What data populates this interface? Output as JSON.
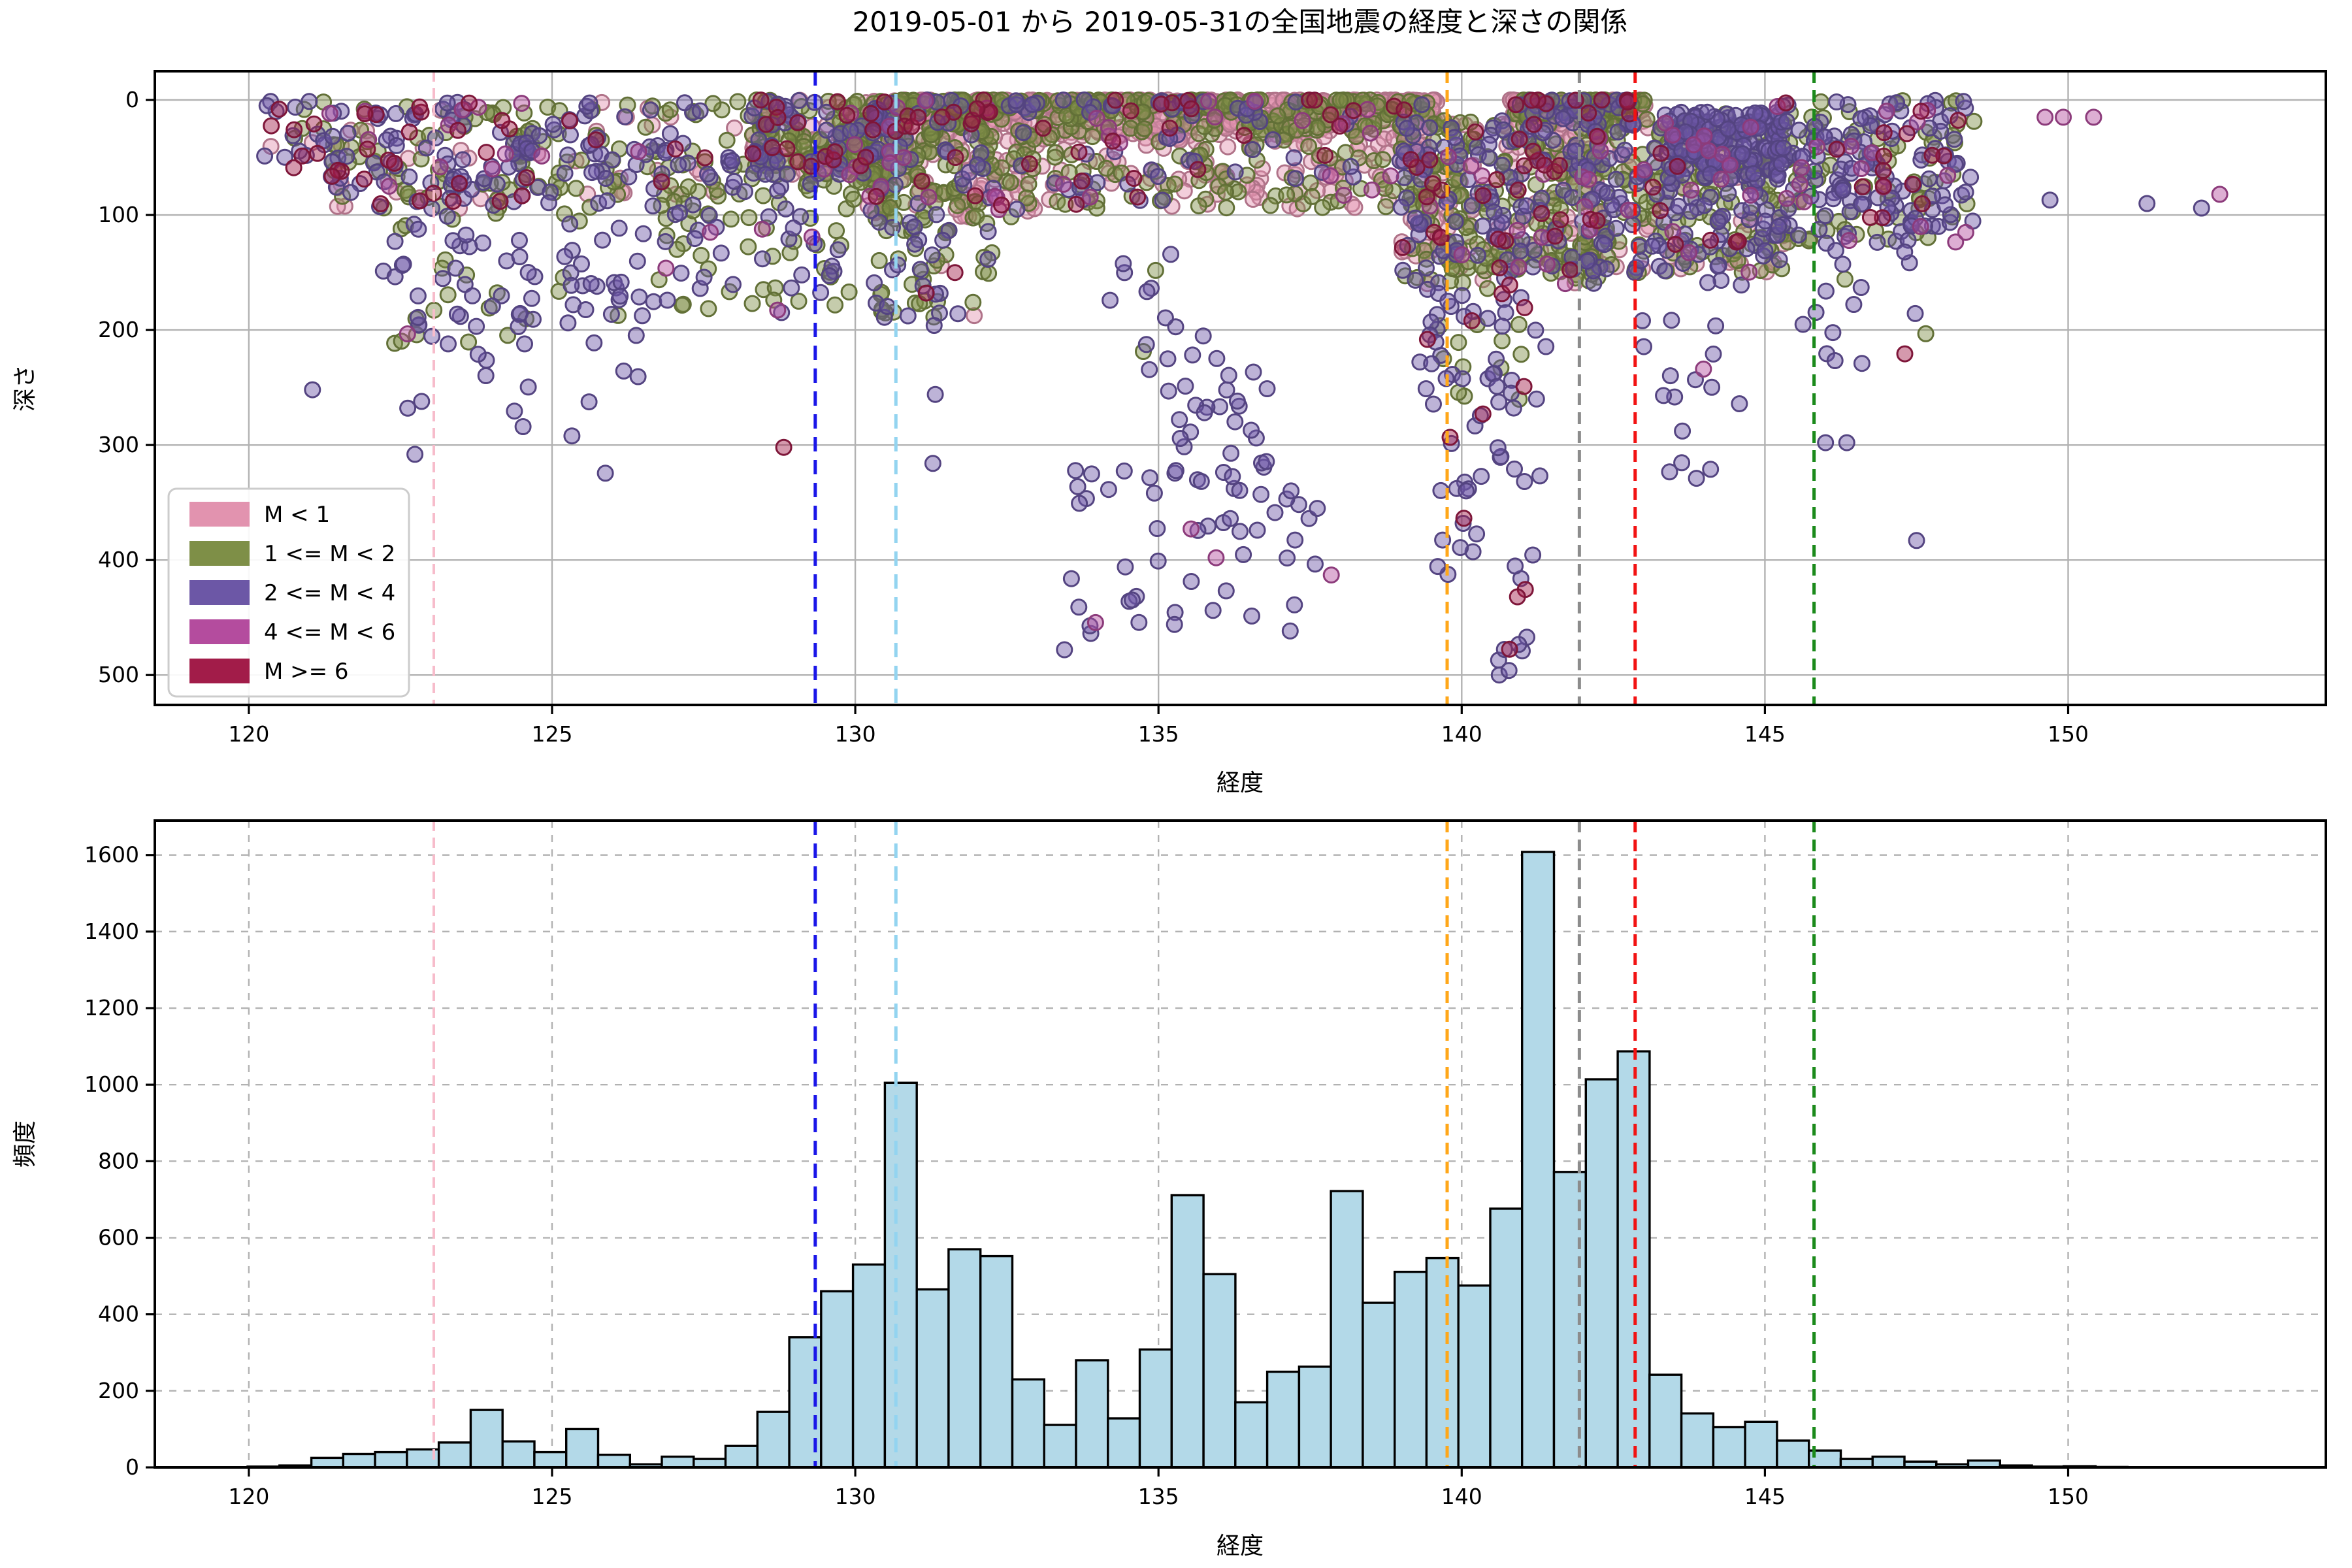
{
  "title": "2019-05-01 から 2019-05-31の全国地震の経度と深さの関係",
  "vlines": [
    {
      "name": "pink-vline",
      "x": 123.05,
      "color": "#F7BCCB",
      "width": 4,
      "dash": "16 10"
    },
    {
      "name": "blue-vline",
      "x": 129.34,
      "color": "#1A16E8",
      "width": 5,
      "dash": "22 13"
    },
    {
      "name": "skyblue-vline",
      "x": 130.67,
      "color": "#93D4F0",
      "width": 5,
      "dash": "22 13"
    },
    {
      "name": "orange-vline",
      "x": 139.76,
      "color": "#FFA719",
      "width": 5,
      "dash": "18 11"
    },
    {
      "name": "gray-vline",
      "x": 141.94,
      "color": "#8C8C8C",
      "width": 5,
      "dash": "18 11"
    },
    {
      "name": "red-vline",
      "x": 142.86,
      "color": "#F21212",
      "width": 5,
      "dash": "18 11"
    },
    {
      "name": "green-vline",
      "x": 145.81,
      "color": "#1B8A1B",
      "width": 5,
      "dash": "18 11"
    }
  ],
  "chart_data": [
    {
      "type": "scatter",
      "title": "2019-05-01 から 2019-05-31の全国地震の経度と深さの関係",
      "xlabel": "経度",
      "ylabel": "深さ",
      "xlim": [
        118.45,
        154.25
      ],
      "depth_lim": [
        -25,
        526
      ],
      "xticks": [
        120,
        125,
        130,
        135,
        140,
        145,
        150
      ],
      "yticks": [
        0,
        100,
        200,
        300,
        400,
        500
      ],
      "grid": "solid",
      "marker": {
        "radius": 11.5,
        "fill_alpha": 0.45,
        "edge_alpha": 1,
        "edge_width": 3,
        "edge_darken": 0.78
      },
      "legend": {
        "position": "lower left",
        "items": [
          {
            "key": "pink",
            "label": "M < 1",
            "color": "#E293AF"
          },
          {
            "key": "olive",
            "label": "1 <= M < 2",
            "color": "#7E8F47"
          },
          {
            "key": "purple",
            "label": "2 <= M < 4",
            "color": "#6C57A6"
          },
          {
            "key": "magenta",
            "label": "4 <= M < 6",
            "color": "#B44C9E"
          },
          {
            "key": "crimson",
            "label": "M >= 6",
            "color": "#A21C49"
          }
        ]
      },
      "clusters": [
        {
          "lon": [
            120.25,
            121.3
          ],
          "depth": [
            0,
            60
          ],
          "n": 22,
          "w": {
            "purple": 0.45,
            "olive": 0.25,
            "pink": 0.1,
            "crimson": 0.15,
            "magenta": 0.05
          }
        },
        {
          "lon": [
            121.2,
            124.6
          ],
          "depth": [
            0,
            95
          ],
          "n": 170,
          "w": {
            "purple": 0.45,
            "olive": 0.27,
            "pink": 0.09,
            "crimson": 0.13,
            "magenta": 0.06
          }
        },
        {
          "lon": [
            122.2,
            126.6
          ],
          "depth": [
            60,
            215
          ],
          "n": 115,
          "w": {
            "purple": 0.7,
            "olive": 0.27,
            "magenta": 0.03
          }
        },
        {
          "lon": [
            122.4,
            127.3
          ],
          "depth": [
            215,
            330
          ],
          "n": 13,
          "w": {
            "purple": 1
          }
        },
        {
          "lon": [
            124.5,
            128.6
          ],
          "depth": [
            0,
            85
          ],
          "n": 140,
          "w": {
            "olive": 0.4,
            "purple": 0.35,
            "pink": 0.15,
            "magenta": 0.04,
            "crimson": 0.06
          }
        },
        {
          "lon": [
            126.6,
            129.9
          ],
          "depth": [
            60,
            185
          ],
          "n": 95,
          "w": {
            "purple": 0.5,
            "olive": 0.44,
            "magenta": 0.06
          }
        },
        {
          "lon": [
            128.3,
            130.7
          ],
          "depth": [
            0,
            65
          ],
          "n": 240,
          "w": {
            "pink": 0.32,
            "olive": 0.41,
            "purple": 0.22,
            "crimson": 0.05
          }
        },
        {
          "lon": [
            129.9,
            132.9
          ],
          "depth": [
            0,
            105
          ],
          "n": 330,
          "w": {
            "pink": 0.35,
            "olive": 0.45,
            "purple": 0.14,
            "crimson": 0.03,
            "magenta": 0.03
          }
        },
        {
          "lon": [
            130.3,
            132.3
          ],
          "depth": [
            105,
            190
          ],
          "n": 60,
          "w": {
            "olive": 0.5,
            "purple": 0.42,
            "crimson": 0.04,
            "pink": 0.04
          }
        },
        {
          "lon": [
            130.6,
            139.6
          ],
          "depth": [
            0,
            32
          ],
          "n": 780,
          "w": {
            "pink": 0.6,
            "olive": 0.3,
            "purple": 0.06,
            "crimson": 0.025,
            "magenta": 0.015
          },
          "bias": "surface"
        },
        {
          "lon": [
            132.9,
            139.5
          ],
          "depth": [
            30,
            95
          ],
          "n": 230,
          "w": {
            "pink": 0.5,
            "olive": 0.33,
            "purple": 0.1,
            "crimson": 0.04,
            "magenta": 0.03
          }
        },
        {
          "lon": [
            133.5,
            137.7
          ],
          "depth": [
            320,
            470
          ],
          "n": 52,
          "w": {
            "purple": 0.96,
            "magenta": 0.04
          }
        },
        {
          "lon": [
            135.1,
            137.0
          ],
          "depth": [
            235,
            330
          ],
          "n": 26,
          "w": {
            "purple": 1
          }
        },
        {
          "lon": [
            134.2,
            136.0
          ],
          "depth": [
            130,
            235
          ],
          "n": 16,
          "w": {
            "purple": 0.88,
            "olive": 0.12
          }
        },
        {
          "lon": [
            139.0,
            142.4
          ],
          "depth": [
            18,
            160
          ],
          "n": 470,
          "w": {
            "olive": 0.42,
            "pink": 0.24,
            "purple": 0.26,
            "crimson": 0.05,
            "magenta": 0.03
          }
        },
        {
          "lon": [
            139.3,
            141.4
          ],
          "depth": [
            160,
            265
          ],
          "n": 55,
          "w": {
            "purple": 0.62,
            "olive": 0.33,
            "crimson": 0.05
          }
        },
        {
          "lon": [
            139.6,
            141.3
          ],
          "depth": [
            265,
            425
          ],
          "n": 28,
          "w": {
            "purple": 0.93,
            "crimson": 0.04,
            "magenta": 0.03
          }
        },
        {
          "lon": [
            140.45,
            141.1
          ],
          "depth": [
            425,
            505
          ],
          "n": 7,
          "w": {
            "purple": 0.85,
            "crimson": 0.15
          }
        },
        {
          "lon": [
            140.8,
            143.1
          ],
          "depth": [
            0,
            22
          ],
          "n": 230,
          "w": {
            "pink": 0.5,
            "olive": 0.33,
            "purple": 0.12,
            "crimson": 0.05
          },
          "bias": "surface"
        },
        {
          "lon": [
            142.0,
            145.4
          ],
          "depth": [
            18,
            150
          ],
          "n": 330,
          "w": {
            "olive": 0.48,
            "purple": 0.36,
            "pink": 0.1,
            "crimson": 0.03,
            "magenta": 0.03
          }
        },
        {
          "lon": [
            142.9,
            144.7
          ],
          "depth": [
            150,
            340
          ],
          "n": 20,
          "w": {
            "purple": 0.9,
            "magenta": 0.1
          }
        },
        {
          "lon": [
            143.35,
            145.25
          ],
          "depth": [
            10,
            70
          ],
          "n": 170,
          "w": {
            "purple": 0.78,
            "olive": 0.16,
            "magenta": 0.06
          }
        },
        {
          "lon": [
            145.2,
            148.45
          ],
          "depth": [
            0,
            125
          ],
          "n": 240,
          "w": {
            "purple": 0.55,
            "olive": 0.35,
            "magenta": 0.06,
            "crimson": 0.04
          }
        },
        {
          "lon": [
            145.6,
            147.7
          ],
          "depth": [
            125,
            245
          ],
          "n": 16,
          "w": {
            "purple": 0.84,
            "olive": 0.1,
            "crimson": 0.06
          }
        }
      ],
      "extra_points": [
        [
          146.0,
          298,
          "purple"
        ],
        [
          146.35,
          298,
          "purple"
        ],
        [
          146.6,
          229,
          "purple"
        ],
        [
          147.5,
          383,
          "purple"
        ],
        [
          149.62,
          15,
          "magenta"
        ],
        [
          149.92,
          15,
          "magenta"
        ],
        [
          150.42,
          15,
          "magenta"
        ],
        [
          149.7,
          87,
          "purple"
        ],
        [
          151.3,
          90,
          "purple"
        ],
        [
          152.2,
          94,
          "purple"
        ],
        [
          152.5,
          82,
          "magenta"
        ],
        [
          133.45,
          478,
          "purple"
        ],
        [
          137.85,
          413,
          "magenta"
        ],
        [
          135.95,
          398,
          "magenta"
        ],
        [
          140.62,
          500,
          "purple"
        ],
        [
          140.78,
          496,
          "purple"
        ],
        [
          140.92,
          432,
          "crimson"
        ],
        [
          140.35,
          273,
          "crimson"
        ],
        [
          131.3,
          196,
          "purple"
        ],
        [
          131.32,
          256,
          "purple"
        ],
        [
          131.28,
          316,
          "purple"
        ],
        [
          128.82,
          302,
          "crimson"
        ],
        [
          121.05,
          252,
          "purple"
        ],
        [
          122.62,
          268,
          "purple"
        ],
        [
          120.3,
          5,
          "purple"
        ],
        [
          120.5,
          8,
          "crimson"
        ]
      ]
    },
    {
      "type": "histogram",
      "xlabel": "経度",
      "ylabel": "頻度",
      "xlim": [
        118.45,
        154.25
      ],
      "ylim": [
        0,
        1690
      ],
      "xticks": [
        120,
        125,
        130,
        135,
        140,
        145,
        150
      ],
      "yticks": [
        0,
        200,
        400,
        600,
        800,
        1000,
        1200,
        1400,
        1600
      ],
      "grid": "dashed",
      "bar_color": "#B3D9E8",
      "bar_edge": "#000000",
      "bin_start": 119.98,
      "bin_width": 0.5254,
      "counts": [
        2,
        5,
        25,
        35,
        40,
        47,
        65,
        150,
        68,
        40,
        100,
        33,
        8,
        28,
        22,
        56,
        145,
        340,
        460,
        530,
        1005,
        465,
        570,
        552,
        230,
        111,
        280,
        128,
        308,
        711,
        505,
        170,
        250,
        263,
        722,
        430,
        511,
        547,
        475,
        676,
        1608,
        772,
        1014,
        1087,
        242,
        141,
        105,
        119,
        70,
        44,
        22,
        28,
        15,
        8,
        18,
        5,
        2,
        3,
        1
      ]
    }
  ]
}
